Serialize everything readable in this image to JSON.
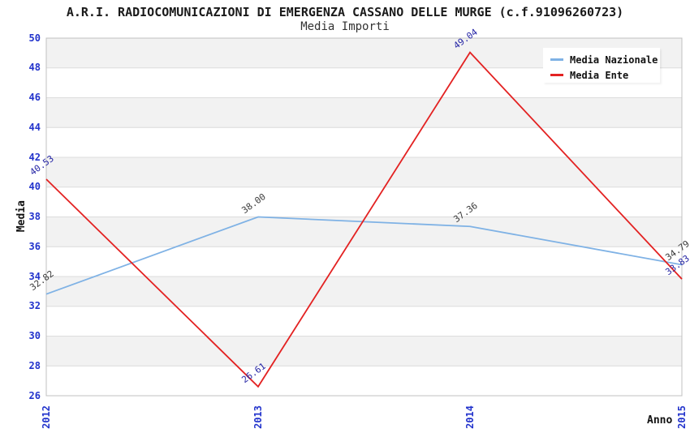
{
  "chart_data": {
    "type": "line",
    "title": "A.R.I. RADIOCOMUNICAZIONI DI EMERGENZA CASSANO DELLE MURGE (c.f.91096260723)",
    "subtitle": "Media Importi",
    "xlabel": "Anno",
    "ylabel": "Media",
    "x": [
      "2012",
      "2013",
      "2014",
      "2015"
    ],
    "series": [
      {
        "name": "Media Nazionale",
        "color": "#7fb2e5",
        "label_color": "#3a3a3a",
        "values": [
          32.82,
          38.0,
          37.36,
          34.79
        ]
      },
      {
        "name": "Media Ente",
        "color": "#e32222",
        "label_color": "#2525a5",
        "values": [
          40.53,
          26.61,
          49.04,
          33.83
        ]
      }
    ],
    "ylim": [
      26,
      50
    ],
    "ytick_step": 2,
    "grid": true,
    "legend_position": "top-right",
    "styles": {
      "tick_label_color": "#2233cc",
      "band_color": "#f2f2f2",
      "gridline_color": "#dcdcdc",
      "border_color": "#c0c0c0"
    }
  },
  "legend": {
    "items": [
      {
        "label": "Media Nazionale",
        "color": "#7fb2e5"
      },
      {
        "label": "Media Ente",
        "color": "#e32222"
      }
    ]
  }
}
